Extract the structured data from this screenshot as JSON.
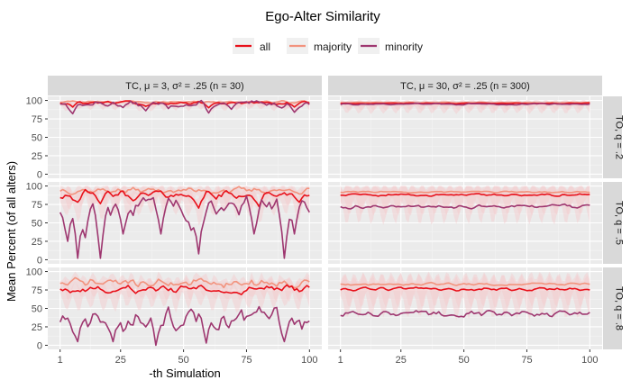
{
  "chart_data": {
    "type": "line",
    "title": "Ego-Alter Similarity",
    "xlabel": "-th Simulation",
    "ylabel": "Mean Percent (of all alters)",
    "x_range": [
      1,
      100
    ],
    "x_ticks": [
      1,
      25,
      50,
      75,
      100
    ],
    "y_range": [
      0,
      100
    ],
    "y_ticks": [
      0,
      25,
      50,
      75,
      100
    ],
    "grid": true,
    "legend_position": "top",
    "legend": [
      {
        "key": "all",
        "label": "all",
        "color": "#e8101a"
      },
      {
        "key": "majority",
        "label": "majority",
        "color": "#f2937e"
      },
      {
        "key": "minority",
        "label": "minority",
        "color": "#9e3770"
      }
    ],
    "ribbon_color": "#f4c9cb",
    "columns": [
      "TC, μ = 3, σ² = .25 (n = 30)",
      "TC, μ = 30, σ² = .25 (n = 300)"
    ],
    "rows": [
      "TO, q = .2",
      "TO, q = .5",
      "TO, q = .8"
    ],
    "panels": [
      {
        "row": 0,
        "col": 0,
        "series": {
          "all": {
            "mean": 97,
            "amp": 2,
            "dips": [
              [
                6,
                91
              ],
              [
                35,
                92
              ],
              [
                60,
                90
              ],
              [
                94,
                91
              ]
            ]
          },
          "majority": {
            "mean": 98,
            "amp": 1.5,
            "dips": []
          },
          "minority": {
            "mean": 95,
            "amp": 4,
            "dips": [
              [
                6,
                82
              ],
              [
                35,
                86
              ],
              [
                44,
                89
              ],
              [
                60,
                83
              ],
              [
                69,
                88
              ],
              [
                94,
                84
              ]
            ]
          }
        }
      },
      {
        "row": 0,
        "col": 1,
        "series": {
          "all": {
            "mean": 96,
            "amp": 0.5,
            "dips": []
          },
          "majority": {
            "mean": 97,
            "amp": 0.5,
            "dips": []
          },
          "minority": {
            "mean": 95,
            "amp": 1,
            "dips": []
          }
        }
      },
      {
        "row": 1,
        "col": 0,
        "series": {
          "all": {
            "mean": 88,
            "amp": 6,
            "dips": [
              [
                8,
                78
              ],
              [
                17,
                76
              ],
              [
                30,
                80
              ],
              [
                56,
                70
              ],
              [
                80,
                72
              ],
              [
                96,
                78
              ]
            ]
          },
          "majority": {
            "mean": 94,
            "amp": 4,
            "dips": []
          },
          "minority": {
            "mean": 72,
            "amp": 14,
            "dips": [
              [
                4,
                25
              ],
              [
                8,
                2
              ],
              [
                11,
                30
              ],
              [
                17,
                2
              ],
              [
                26,
                35
              ],
              [
                41,
                35
              ],
              [
                53,
                40
              ],
              [
                56,
                8
              ],
              [
                78,
                35
              ],
              [
                90,
                2
              ],
              [
                94,
                35
              ]
            ]
          }
        }
      },
      {
        "row": 1,
        "col": 1,
        "series": {
          "all": {
            "mean": 88,
            "amp": 1.5,
            "dips": []
          },
          "majority": {
            "mean": 92,
            "amp": 1,
            "dips": []
          },
          "minority": {
            "mean": 72,
            "amp": 2.5,
            "dips": []
          }
        }
      },
      {
        "row": 2,
        "col": 0,
        "series": {
          "all": {
            "mean": 76,
            "amp": 5,
            "dips": []
          },
          "majority": {
            "mean": 85,
            "amp": 6,
            "dips": []
          },
          "minority": {
            "mean": 35,
            "amp": 16,
            "dips": [
              [
                8,
                5
              ],
              [
                22,
                5
              ],
              [
                39,
                0
              ],
              [
                59,
                3
              ],
              [
                90,
                5
              ]
            ]
          }
        }
      },
      {
        "row": 2,
        "col": 1,
        "series": {
          "all": {
            "mean": 76,
            "amp": 2,
            "dips": []
          },
          "majority": {
            "mean": 83,
            "amp": 1.5,
            "dips": []
          },
          "minority": {
            "mean": 43,
            "amp": 4,
            "dips": []
          }
        }
      }
    ]
  }
}
